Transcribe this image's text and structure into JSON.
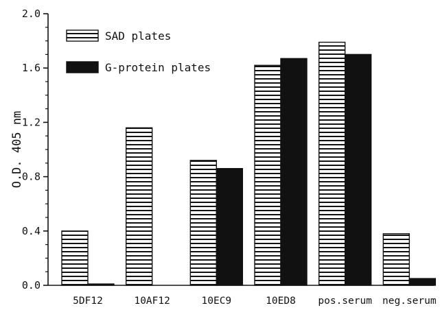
{
  "chart_data": {
    "type": "bar",
    "ylabel": "O.D. 405 nm",
    "ylim": [
      0.0,
      2.0
    ],
    "yticks": [
      "0.0",
      "0.4",
      "0.8",
      "1.2",
      "1.6",
      "2.0"
    ],
    "ytick_values": [
      0.0,
      0.4,
      0.8,
      1.2,
      1.6,
      2.0
    ],
    "categories": [
      "5DF12",
      "10AF12",
      "10EC9",
      "10ED8",
      "pos.serum",
      "neg.serum"
    ],
    "series": [
      {
        "name": "SAD plates",
        "pattern": "horizontal-stripes",
        "values": [
          0.4,
          1.16,
          0.92,
          1.62,
          1.79,
          0.38
        ]
      },
      {
        "name": "G-protein plates",
        "pattern": "solid-black",
        "values": [
          0.01,
          0.0,
          0.86,
          1.67,
          1.7,
          0.05
        ]
      }
    ],
    "legend_position": "top-left",
    "grid": false,
    "colors": {
      "ink": "#111111",
      "background": "#ffffff"
    }
  }
}
